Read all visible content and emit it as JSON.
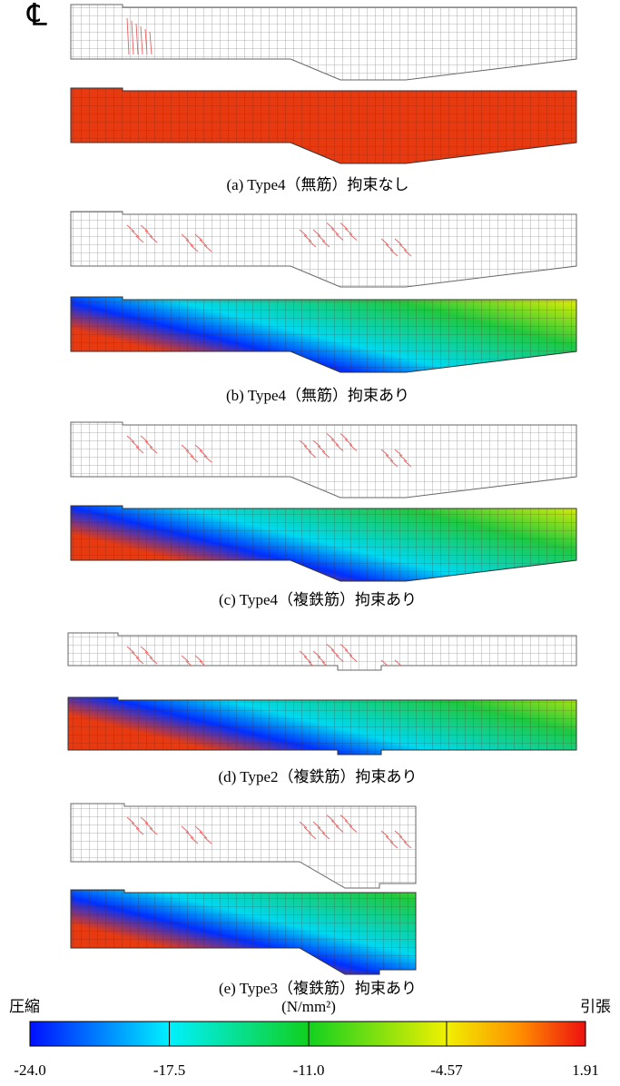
{
  "cl_symbol": "℄",
  "panels": [
    {
      "caption": "(a) Type4（無筋）拘束なし"
    },
    {
      "caption": "(b) Type4（無筋）拘束あり"
    },
    {
      "caption": "(c) Type4（複鉄筋）拘束あり"
    },
    {
      "caption": "(d) Type2（複鉄筋）拘束あり"
    },
    {
      "caption": "(e) Type3（複鉄筋）拘束あり"
    }
  ],
  "colorbar": {
    "left_label": "圧縮",
    "unit": "(N/mm²)",
    "right_label": "引張",
    "lim": [
      -24.0,
      1.91
    ],
    "ticks": [
      {
        "value": -24.0,
        "label": "-24.0"
      },
      -17.5,
      {
        "value": -11.0,
        "label": "-11.0"
      },
      -4.57,
      1.91
    ]
  }
}
